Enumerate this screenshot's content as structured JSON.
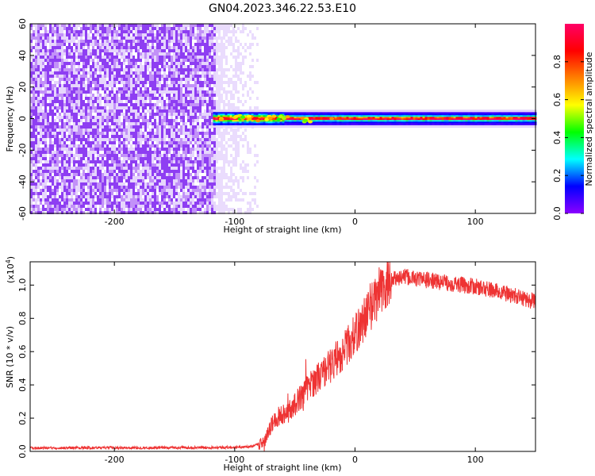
{
  "figure": {
    "title": "GN04.2023.346.22.53.E10"
  },
  "chart_data": [
    {
      "type": "heatmap",
      "title": "",
      "xlabel": "Height of straight line (km)",
      "ylabel": "Frequency (Hz)",
      "xlim": [
        -270,
        150
      ],
      "ylim": [
        -60,
        60
      ],
      "xticks": [
        -200,
        -100,
        0,
        100
      ],
      "xtick_labels": [
        "-200",
        "-100",
        "0",
        "100"
      ],
      "yticks": [
        -60,
        -40,
        -20,
        0,
        20,
        40,
        60
      ],
      "ytick_labels": [
        "-60",
        "-40",
        "-20",
        "0",
        "20",
        "40",
        "60"
      ],
      "colorbar": {
        "label": "Normalized spectral amplitude",
        "range": [
          0,
          1
        ],
        "ticks": [
          0.0,
          0.2,
          0.4,
          0.6,
          0.8
        ],
        "tick_labels": [
          "0.0",
          "0.2",
          "0.4",
          "0.6",
          "0.8"
        ],
        "colormap": [
          "#8B00FF",
          "#0000FF",
          "#00FFFF",
          "#00FF00",
          "#FFFF00",
          "#FF8000",
          "#FF0000",
          "#FF0066"
        ]
      },
      "noise_region": {
        "x_range": [
          -270,
          -90
        ],
        "y_range": [
          -60,
          60
        ],
        "amplitude": 0.12
      },
      "signal_band": {
        "x_range": [
          -118,
          150
        ],
        "y_center": 0,
        "amplitude": 0.85
      }
    },
    {
      "type": "line",
      "title": "",
      "xlabel": "Height of straight line (km)",
      "ylabel": "SNR (10 * v/v)",
      "y_scale_label": "(x10",
      "y_scale_exp": "4",
      "y_scale_close": ")",
      "xlim": [
        -270,
        150
      ],
      "ylim": [
        0,
        1.14
      ],
      "xticks": [
        -200,
        -100,
        0,
        100
      ],
      "xtick_labels": [
        "-200",
        "-100",
        "0",
        "100"
      ],
      "yticks": [
        0.0,
        0.2,
        0.4,
        0.6,
        0.8,
        1.0
      ],
      "ytick_labels": [
        "0.0",
        "0.2",
        "0.4",
        "0.6",
        "0.8",
        "1.0"
      ],
      "color": "#ee3333",
      "series": [
        {
          "x": [
            -270,
            -240,
            -200,
            -160,
            -120,
            -100,
            -85,
            -75,
            -68,
            -62,
            -55,
            -48,
            -40,
            -30,
            -20,
            -10,
            0,
            10,
            20,
            30,
            40,
            60,
            80,
            100,
            120,
            140,
            150
          ],
          "y": [
            0.02,
            0.022,
            0.022,
            0.022,
            0.024,
            0.024,
            0.03,
            0.06,
            0.18,
            0.22,
            0.24,
            0.3,
            0.38,
            0.45,
            0.52,
            0.6,
            0.7,
            0.83,
            0.95,
            1.03,
            1.05,
            1.03,
            1.01,
            0.99,
            0.96,
            0.92,
            0.9
          ]
        }
      ]
    }
  ]
}
